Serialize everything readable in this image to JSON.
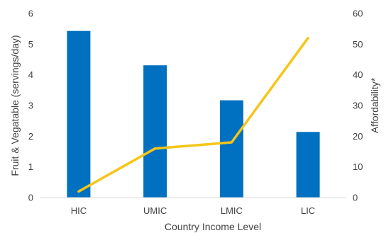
{
  "chart_data": {
    "type": "bar",
    "categories": [
      "HIC",
      "UMIC",
      "LMIC",
      "LIC"
    ],
    "xlabel": "Country Income Level",
    "ylabel": "Fruit  & Vegatable (servings/day)",
    "y2label": "Affordability*",
    "ylim": [
      0,
      6
    ],
    "y2lim": [
      0,
      60
    ],
    "yticks": [
      "0",
      "1",
      "2",
      "3",
      "4",
      "5",
      "6"
    ],
    "y2ticks": [
      "0",
      "10",
      "20",
      "30",
      "40",
      "50",
      "60"
    ],
    "grid": false,
    "series": [
      {
        "type": "bar",
        "axis": "left",
        "values": [
          5.43,
          4.31,
          3.17,
          2.14
        ],
        "color": "#0070C0"
      },
      {
        "type": "line",
        "axis": "right",
        "values": [
          2,
          16,
          18,
          52
        ],
        "color": "#F5C518"
      }
    ]
  }
}
